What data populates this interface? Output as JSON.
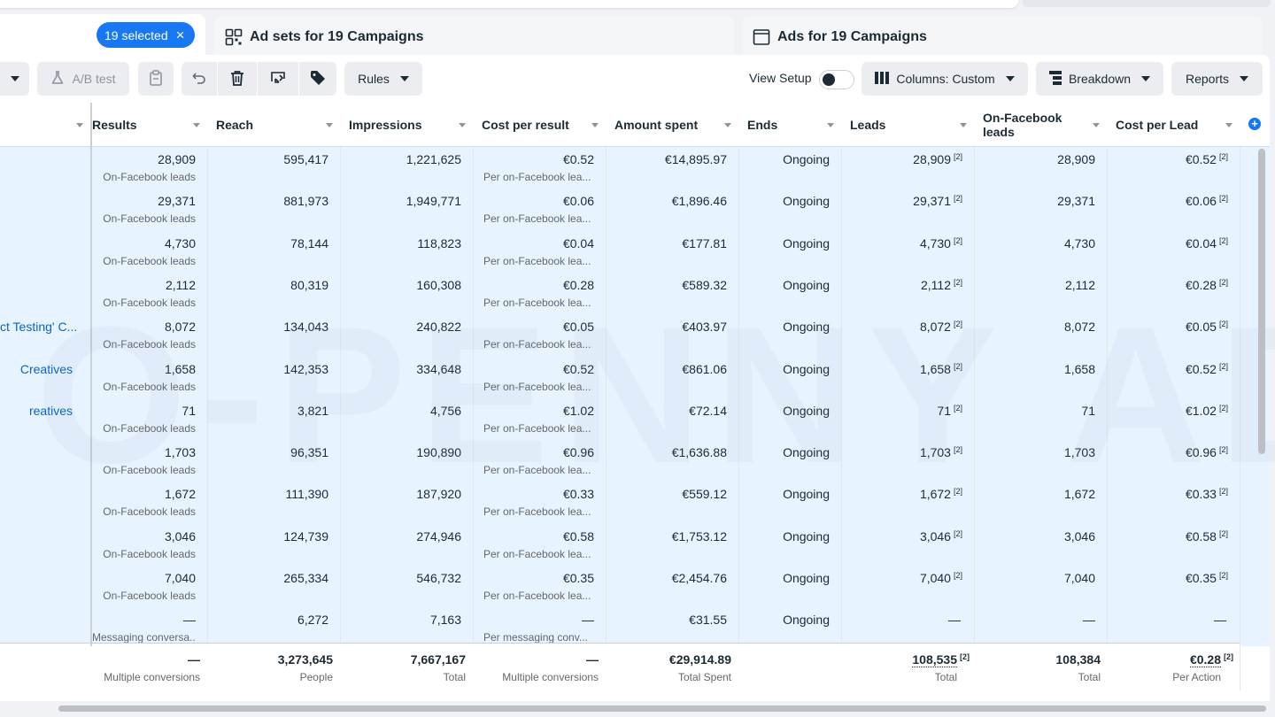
{
  "tabs": {
    "selected_label": "19 selected",
    "adsets_label": "Ad sets for 19 Campaigns",
    "ads_label": "Ads for 19 Campaigns"
  },
  "toolbar": {
    "ab_test": "A/B test",
    "rules": "Rules",
    "view_setup": "View Setup",
    "columns": "Columns: Custom",
    "breakdown": "Breakdown",
    "reports": "Reports"
  },
  "columns": [
    "Results",
    "Reach",
    "Impressions",
    "Cost per result",
    "Amount spent",
    "Ends",
    "Leads",
    "On-Facebook leads",
    "Cost per Lead"
  ],
  "rows": [
    {
      "name": "",
      "results": "28,909",
      "results_sub": "On-Facebook leads",
      "reach": "595,417",
      "impressions": "1,221,625",
      "cpr": "€0.52",
      "cpr_sub": "Per on-Facebook lea...",
      "spent": "€14,895.97",
      "ends": "Ongoing",
      "leads": "28,909",
      "fb_leads": "28,909",
      "cpl": "€0.52"
    },
    {
      "name": "",
      "results": "29,371",
      "results_sub": "On-Facebook leads",
      "reach": "881,973",
      "impressions": "1,949,771",
      "cpr": "€0.06",
      "cpr_sub": "Per on-Facebook lea...",
      "spent": "€1,896.46",
      "ends": "Ongoing",
      "leads": "29,371",
      "fb_leads": "29,371",
      "cpl": "€0.06"
    },
    {
      "name": "",
      "results": "4,730",
      "results_sub": "On-Facebook leads",
      "reach": "78,144",
      "impressions": "118,823",
      "cpr": "€0.04",
      "cpr_sub": "Per on-Facebook lea...",
      "spent": "€177.81",
      "ends": "Ongoing",
      "leads": "4,730",
      "fb_leads": "4,730",
      "cpl": "€0.04"
    },
    {
      "name": "",
      "results": "2,112",
      "results_sub": "On-Facebook leads",
      "reach": "80,319",
      "impressions": "160,308",
      "cpr": "€0.28",
      "cpr_sub": "Per on-Facebook lea...",
      "spent": "€589.32",
      "ends": "Ongoing",
      "leads": "2,112",
      "fb_leads": "2,112",
      "cpl": "€0.28"
    },
    {
      "name": "ct Testing' C...",
      "results": "8,072",
      "results_sub": "On-Facebook leads",
      "reach": "134,043",
      "impressions": "240,822",
      "cpr": "€0.05",
      "cpr_sub": "Per on-Facebook lea...",
      "spent": "€403.97",
      "ends": "Ongoing",
      "leads": "8,072",
      "fb_leads": "8,072",
      "cpl": "€0.05"
    },
    {
      "name": "Creatives",
      "results": "1,658",
      "results_sub": "On-Facebook leads",
      "reach": "142,353",
      "impressions": "334,648",
      "cpr": "€0.52",
      "cpr_sub": "Per on-Facebook lea...",
      "spent": "€861.06",
      "ends": "Ongoing",
      "leads": "1,658",
      "fb_leads": "1,658",
      "cpl": "€0.52"
    },
    {
      "name": "reatives",
      "results": "71",
      "results_sub": "On-Facebook leads",
      "reach": "3,821",
      "impressions": "4,756",
      "cpr": "€1.02",
      "cpr_sub": "Per on-Facebook lea...",
      "spent": "€72.14",
      "ends": "Ongoing",
      "leads": "71",
      "fb_leads": "71",
      "cpl": "€1.02"
    },
    {
      "name": "",
      "results": "1,703",
      "results_sub": "On-Facebook leads",
      "reach": "96,351",
      "impressions": "190,890",
      "cpr": "€0.96",
      "cpr_sub": "Per on-Facebook lea...",
      "spent": "€1,636.88",
      "ends": "Ongoing",
      "leads": "1,703",
      "fb_leads": "1,703",
      "cpl": "€0.96"
    },
    {
      "name": "",
      "results": "1,672",
      "results_sub": "On-Facebook leads",
      "reach": "111,390",
      "impressions": "187,920",
      "cpr": "€0.33",
      "cpr_sub": "Per on-Facebook lea...",
      "spent": "€559.12",
      "ends": "Ongoing",
      "leads": "1,672",
      "fb_leads": "1,672",
      "cpl": "€0.33"
    },
    {
      "name": "",
      "results": "3,046",
      "results_sub": "On-Facebook leads",
      "reach": "124,739",
      "impressions": "274,946",
      "cpr": "€0.58",
      "cpr_sub": "Per on-Facebook lea...",
      "spent": "€1,753.12",
      "ends": "Ongoing",
      "leads": "3,046",
      "fb_leads": "3,046",
      "cpl": "€0.58"
    },
    {
      "name": "",
      "results": "7,040",
      "results_sub": "On-Facebook leads",
      "reach": "265,334",
      "impressions": "546,732",
      "cpr": "€0.35",
      "cpr_sub": "Per on-Facebook lea...",
      "spent": "€2,454.76",
      "ends": "Ongoing",
      "leads": "7,040",
      "fb_leads": "7,040",
      "cpl": "€0.35"
    },
    {
      "name": "",
      "results": "—",
      "results_sub": "Messaging conversa...",
      "reach": "6,272",
      "impressions": "7,163",
      "cpr": "—",
      "cpr_sub": "Per messaging conv...",
      "spent": "€31.55",
      "ends": "Ongoing",
      "leads": "—",
      "fb_leads": "—",
      "cpl": "—"
    }
  ],
  "footnote": "[2]",
  "totals": {
    "results": "—",
    "results_sub": "Multiple conversions",
    "reach": "3,273,645",
    "reach_sub": "People",
    "impressions": "7,667,167",
    "impressions_sub": "Total",
    "cpr": "—",
    "cpr_sub": "Multiple conversions",
    "spent": "€29,914.89",
    "spent_sub": "Total Spent",
    "leads": "108,535",
    "leads_sub": "Total",
    "fb_leads": "108,384",
    "fb_leads_sub": "Total",
    "cpl": "€0.28",
    "cpl_sub": "Per Action"
  },
  "watermark": "O-PENNY ADS",
  "colors": {
    "accent": "#1877f2",
    "row_selected": "#e7f3ff",
    "link": "#0a66c2"
  }
}
